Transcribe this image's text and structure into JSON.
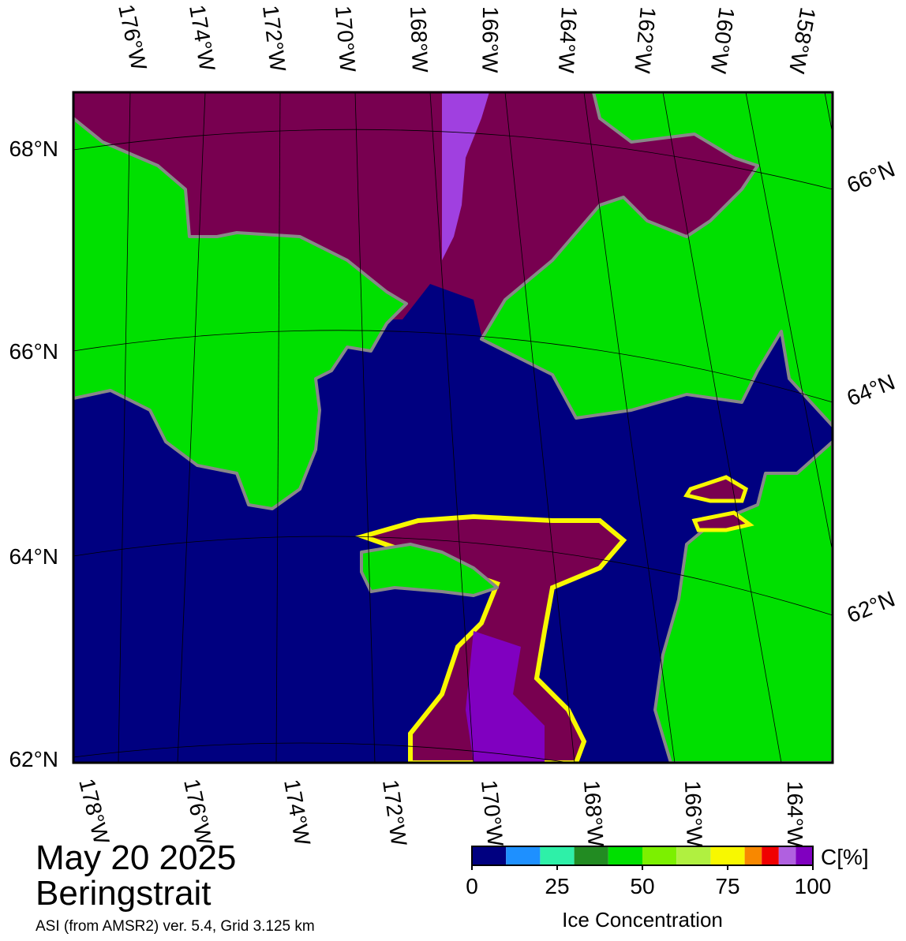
{
  "title": "May 20 2025",
  "region": "Beringstrait",
  "source": "ASI (from AMSR2) ver. 5.4,  Grid 3.125 km",
  "top_lon_labels": [
    "176°W",
    "174°W",
    "172°W",
    "170°W",
    "168°W",
    "166°W",
    "164°W",
    "162°W",
    "160°W",
    "158°W"
  ],
  "bottom_lon_labels": [
    "178°W",
    "176°W",
    "174°W",
    "172°W",
    "170°W",
    "168°W",
    "166°W",
    "164°W"
  ],
  "left_lat_labels": [
    "68°N",
    "66°N",
    "64°N",
    "62°N"
  ],
  "right_lat_labels": [
    "66°N",
    "64°N",
    "62°N"
  ],
  "colorbar": {
    "label": "Ice Concentration",
    "unit": "C[%]",
    "range": [
      0,
      100
    ],
    "ticks": [
      0,
      25,
      50,
      75,
      100
    ],
    "bounds": [
      0,
      10,
      20,
      30,
      40,
      50,
      60,
      70,
      80,
      85,
      90,
      95,
      100
    ],
    "colors": [
      "#000080",
      "#1e90ff",
      "#2ef0a8",
      "#228b22",
      "#00e000",
      "#7cf000",
      "#b0f040",
      "#f8f800",
      "#f88800",
      "#f00000",
      "#b060e0",
      "#8000c0"
    ]
  }
}
